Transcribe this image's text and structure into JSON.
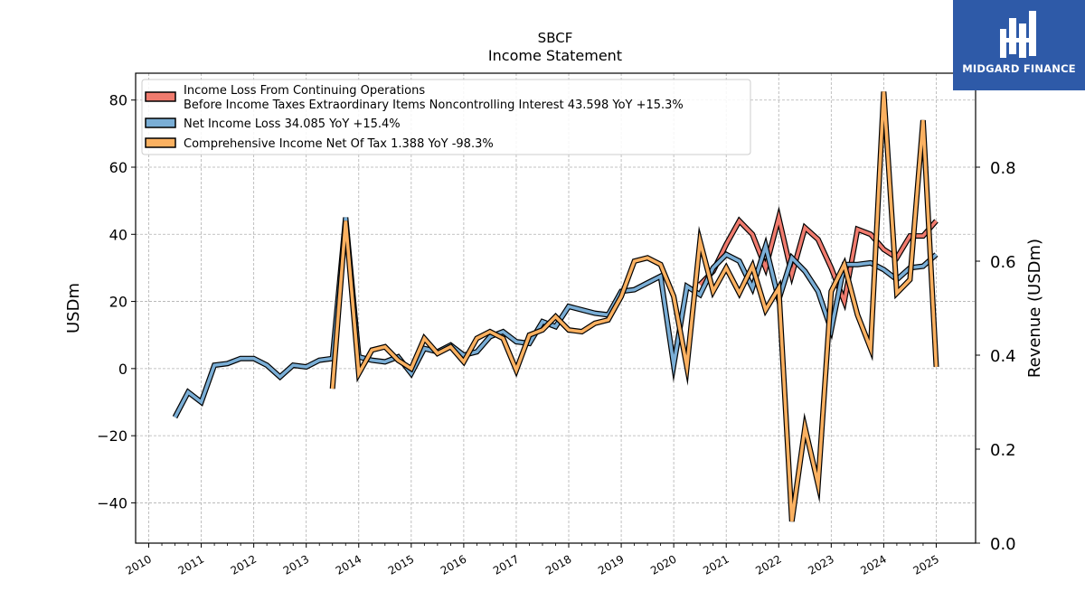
{
  "chart_data": {
    "type": "line",
    "title": "SBCF",
    "subtitle": "Income Statement",
    "ylabel_left": "USDm",
    "ylabel_right": "Revenue (USDm)",
    "ylim_left": [
      -52,
      88
    ],
    "ylim_right": [
      0.0,
      1.0
    ],
    "yticks_left": [
      -40,
      -20,
      0,
      20,
      40,
      60,
      80
    ],
    "yticks_right": [
      0.0,
      0.2,
      0.4,
      0.6,
      0.8
    ],
    "yticks_left_labels": [
      "−40",
      "−20",
      "0",
      "20",
      "40",
      "60",
      "80"
    ],
    "yticks_right_labels": [
      "0.0",
      "0.2",
      "0.4",
      "0.6",
      "0.8"
    ],
    "xlim": [
      2009.75,
      2025.75
    ],
    "xticks": [
      "2010",
      "2011",
      "2012",
      "2013",
      "2014",
      "2015",
      "2016",
      "2017",
      "2018",
      "2019",
      "2020",
      "2021",
      "2022",
      "2023",
      "2024",
      "2025"
    ],
    "grid": true,
    "legend_position": "top-left",
    "legend": [
      {
        "line1": "Income Loss From Continuing Operations",
        "line2": "Before Income Taxes Extraordinary Items Noncontrolling Interest  43.598 YoY +15.3%"
      },
      {
        "line1": "Net Income Loss  34.085 YoY +15.4%"
      },
      {
        "line1": "Comprehensive Income Net Of Tax  1.388 YoY -98.3%"
      }
    ],
    "series": [
      {
        "name": "Income Loss From Continuing Operations Before Income Taxes Extraordinary Items Noncontrolling Interest",
        "color": "#f07b6e",
        "x": [
          2020.5,
          2020.75,
          2021.0,
          2021.25,
          2021.5,
          2021.75,
          2022.0,
          2022.25,
          2022.5,
          2022.75,
          2023.0,
          2023.25,
          2023.5,
          2023.75,
          2024.0,
          2024.25,
          2024.5,
          2024.75,
          2025.0
        ],
        "values": [
          25.0,
          29.0,
          37.0,
          44.0,
          40.0,
          30.0,
          45.0,
          28.0,
          42.0,
          38.5,
          30.0,
          20.0,
          41.5,
          40.0,
          35.5,
          33.0,
          39.5,
          39.5,
          44.0
        ]
      },
      {
        "name": "Net Income Loss",
        "color": "#7aaed6",
        "x": [
          2010.5,
          2010.75,
          2011.0,
          2011.25,
          2011.5,
          2011.75,
          2012.0,
          2012.25,
          2012.5,
          2012.75,
          2013.0,
          2013.25,
          2013.5,
          2013.75,
          2014.0,
          2014.25,
          2014.5,
          2014.75,
          2015.0,
          2015.25,
          2015.5,
          2015.75,
          2016.0,
          2016.25,
          2016.5,
          2016.75,
          2017.0,
          2017.25,
          2017.5,
          2017.75,
          2018.0,
          2018.25,
          2018.5,
          2018.75,
          2019.0,
          2019.25,
          2019.5,
          2019.75,
          2020.0,
          2020.25,
          2020.5,
          2020.75,
          2021.0,
          2021.25,
          2021.5,
          2021.75,
          2022.0,
          2022.25,
          2022.5,
          2022.75,
          2023.0,
          2023.25,
          2023.5,
          2023.75,
          2024.0,
          2024.25,
          2024.5,
          2024.75,
          2025.0
        ],
        "values": [
          -14.5,
          -7.0,
          -10.0,
          1.0,
          1.5,
          3.0,
          3.0,
          1.0,
          -2.5,
          1.0,
          0.5,
          2.5,
          3.0,
          45.0,
          3.5,
          2.5,
          2.0,
          3.5,
          -1.5,
          6.0,
          5.0,
          7.0,
          4.0,
          5.0,
          9.5,
          11.0,
          8.0,
          7.5,
          14.0,
          12.5,
          18.5,
          17.5,
          16.5,
          16.0,
          23.0,
          23.5,
          25.5,
          27.5,
          1.0,
          24.5,
          22.0,
          30.0,
          34.0,
          32.0,
          24.0,
          36.5,
          20.5,
          33.0,
          29.0,
          23.0,
          11.5,
          31.0,
          31.0,
          31.5,
          29.5,
          26.5,
          30.0,
          30.5,
          34.0
        ]
      },
      {
        "name": "Comprehensive Income Net Of Tax",
        "color": "#fbb161",
        "x": [
          2013.5,
          2013.75,
          2014.0,
          2014.25,
          2014.5,
          2014.75,
          2015.0,
          2015.25,
          2015.5,
          2015.75,
          2016.0,
          2016.25,
          2016.5,
          2016.75,
          2017.0,
          2017.25,
          2017.5,
          2017.75,
          2018.0,
          2018.25,
          2018.5,
          2018.75,
          2019.0,
          2019.25,
          2019.5,
          2019.75,
          2020.0,
          2020.25,
          2020.5,
          2020.75,
          2021.0,
          2021.25,
          2021.5,
          2021.75,
          2022.0,
          2022.25,
          2022.5,
          2022.75,
          2023.0,
          2023.25,
          2023.5,
          2023.75,
          2024.0,
          2024.25,
          2024.5,
          2024.75,
          2025.0
        ],
        "values": [
          -6.0,
          44.0,
          -1.5,
          5.5,
          6.5,
          2.5,
          0.0,
          9.0,
          4.5,
          6.5,
          2.0,
          9.0,
          11.0,
          9.0,
          -0.5,
          10.0,
          11.5,
          15.5,
          11.5,
          11.0,
          13.5,
          14.5,
          21.5,
          32.0,
          33.0,
          31.0,
          21.5,
          0.5,
          38.0,
          23.0,
          30.0,
          22.5,
          30.5,
          17.5,
          24.0,
          -45.5,
          -17.5,
          -34.5,
          23.0,
          31.0,
          16.0,
          6.0,
          82.5,
          22.5,
          26.5,
          74.0,
          0.5
        ]
      }
    ]
  },
  "logo": {
    "text": "MIDGARD FINANCE",
    "color": "#2e5aa8"
  }
}
